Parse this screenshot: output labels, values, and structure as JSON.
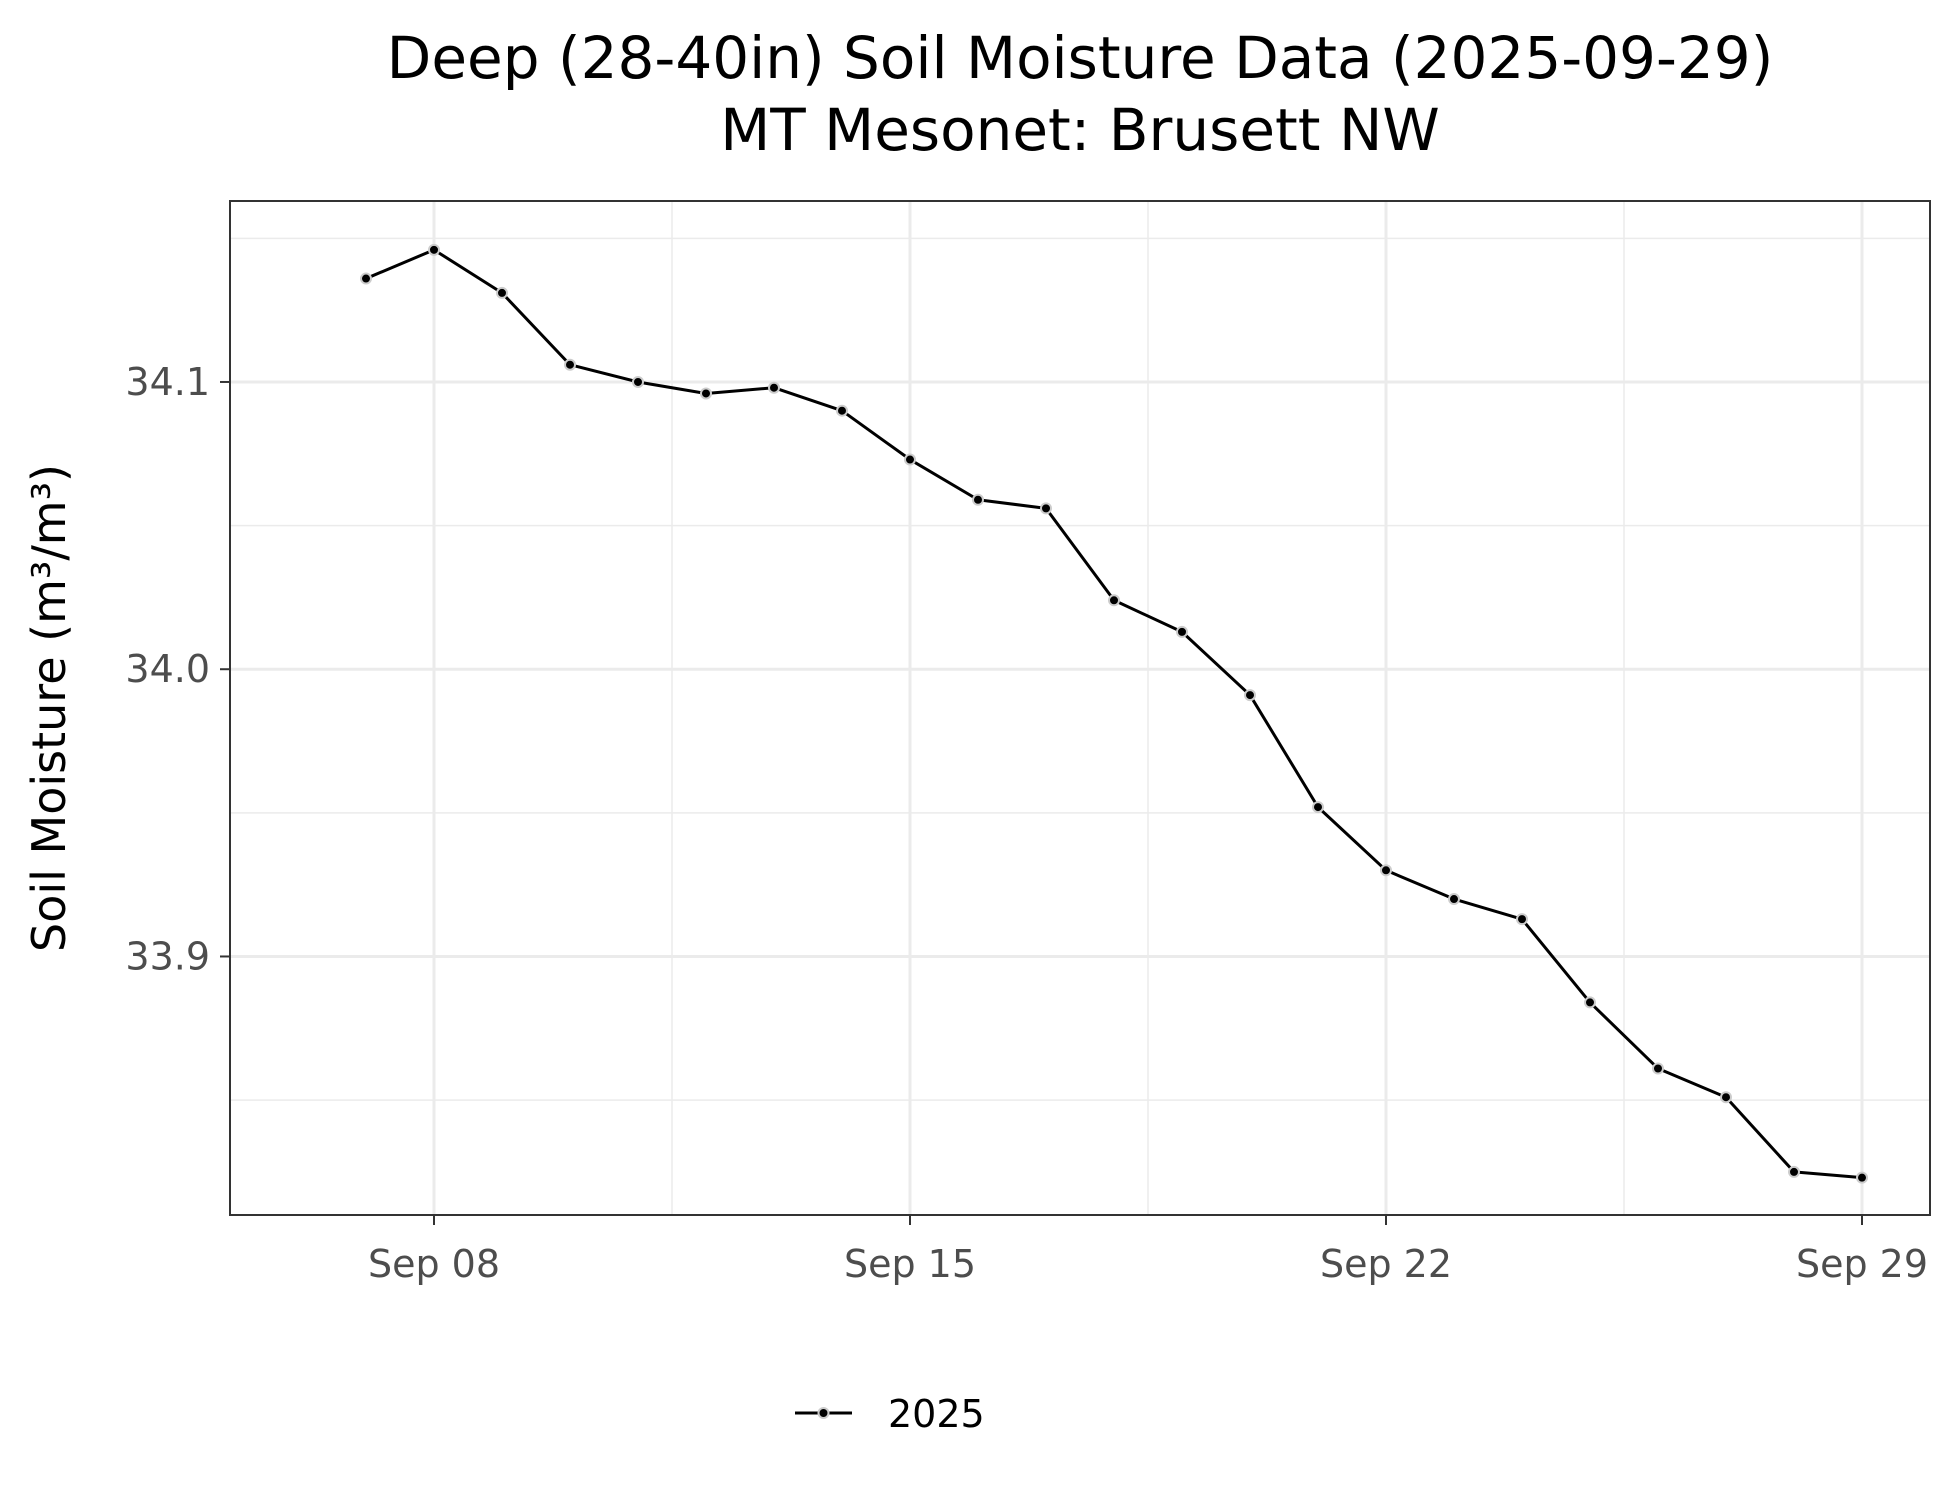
{
  "chart_data": {
    "type": "line",
    "title": "Deep (28-40in) Soil Moisture Data (2025-09-29)",
    "subtitle": "MT Mesonet: Brusett NW",
    "xlabel": "",
    "ylabel": "Soil Moisture (m³/m³)",
    "x_ticks": [
      "Sep 08",
      "Sep 15",
      "Sep 22",
      "Sep 29"
    ],
    "x_tick_dates": [
      "2025-09-08",
      "2025-09-15",
      "2025-09-22",
      "2025-09-29"
    ],
    "y_ticks": [
      "33.9",
      "34.0",
      "34.1"
    ],
    "y_tick_values": [
      33.9,
      34.0,
      34.1
    ],
    "xlim": [
      "2025-09-05",
      "2025-09-30"
    ],
    "ylim": [
      33.81,
      34.163
    ],
    "grid": true,
    "legend_position": "bottom",
    "series": [
      {
        "name": "2025",
        "color": "#000000",
        "x": [
          "2025-09-07",
          "2025-09-08",
          "2025-09-09",
          "2025-09-10",
          "2025-09-11",
          "2025-09-12",
          "2025-09-13",
          "2025-09-14",
          "2025-09-15",
          "2025-09-16",
          "2025-09-17",
          "2025-09-18",
          "2025-09-19",
          "2025-09-20",
          "2025-09-21",
          "2025-09-22",
          "2025-09-23",
          "2025-09-24",
          "2025-09-25",
          "2025-09-26",
          "2025-09-27",
          "2025-09-28",
          "2025-09-29"
        ],
        "values": [
          34.136,
          34.146,
          34.131,
          34.106,
          34.1,
          34.096,
          34.098,
          34.09,
          34.073,
          34.059,
          34.056,
          34.024,
          34.013,
          33.991,
          33.952,
          33.93,
          33.92,
          33.913,
          33.884,
          33.861,
          33.851,
          33.825,
          33.823
        ]
      }
    ]
  }
}
